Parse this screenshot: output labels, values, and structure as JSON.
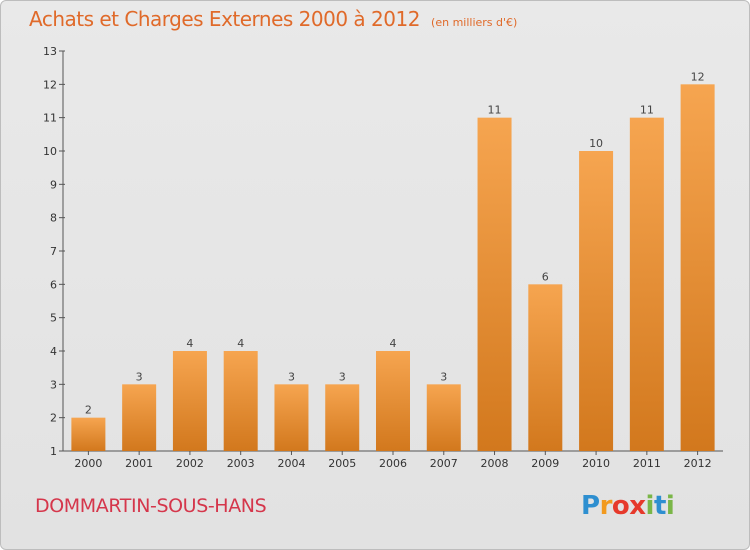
{
  "header": {
    "title": "Achats et Charges Externes 2000 à 2012",
    "subtitle": "(en milliers d'€)"
  },
  "footer": {
    "commune": "DOMMARTIN-SOUS-HANS",
    "logo_letters": [
      "P",
      "r",
      "o",
      "x",
      "i",
      "t",
      "i"
    ],
    "logo_colors": [
      "#2e8fd0",
      "#f29a1f",
      "#e6392b",
      "#e6392b",
      "#7ab648",
      "#2e8fd0",
      "#7ab648"
    ]
  },
  "colors": {
    "bar_top": "#f6a550",
    "bar_bottom": "#d2781d",
    "commune": "#d5364b",
    "title": "#e06a2a"
  },
  "chart_data": {
    "type": "bar",
    "title": "Achats et Charges Externes 2000 à 2012",
    "subtitle": "(en milliers d'€)",
    "categories": [
      "2000",
      "2001",
      "2002",
      "2003",
      "2004",
      "2005",
      "2006",
      "2007",
      "2008",
      "2009",
      "2010",
      "2011",
      "2012"
    ],
    "values": [
      2,
      3,
      4,
      4,
      3,
      3,
      4,
      3,
      11,
      6,
      10,
      11,
      12
    ],
    "ylim": [
      1,
      13
    ],
    "yticks": [
      1,
      2,
      3,
      4,
      5,
      6,
      7,
      8,
      9,
      10,
      11,
      12,
      13
    ],
    "grid": false,
    "data_labels": true
  }
}
